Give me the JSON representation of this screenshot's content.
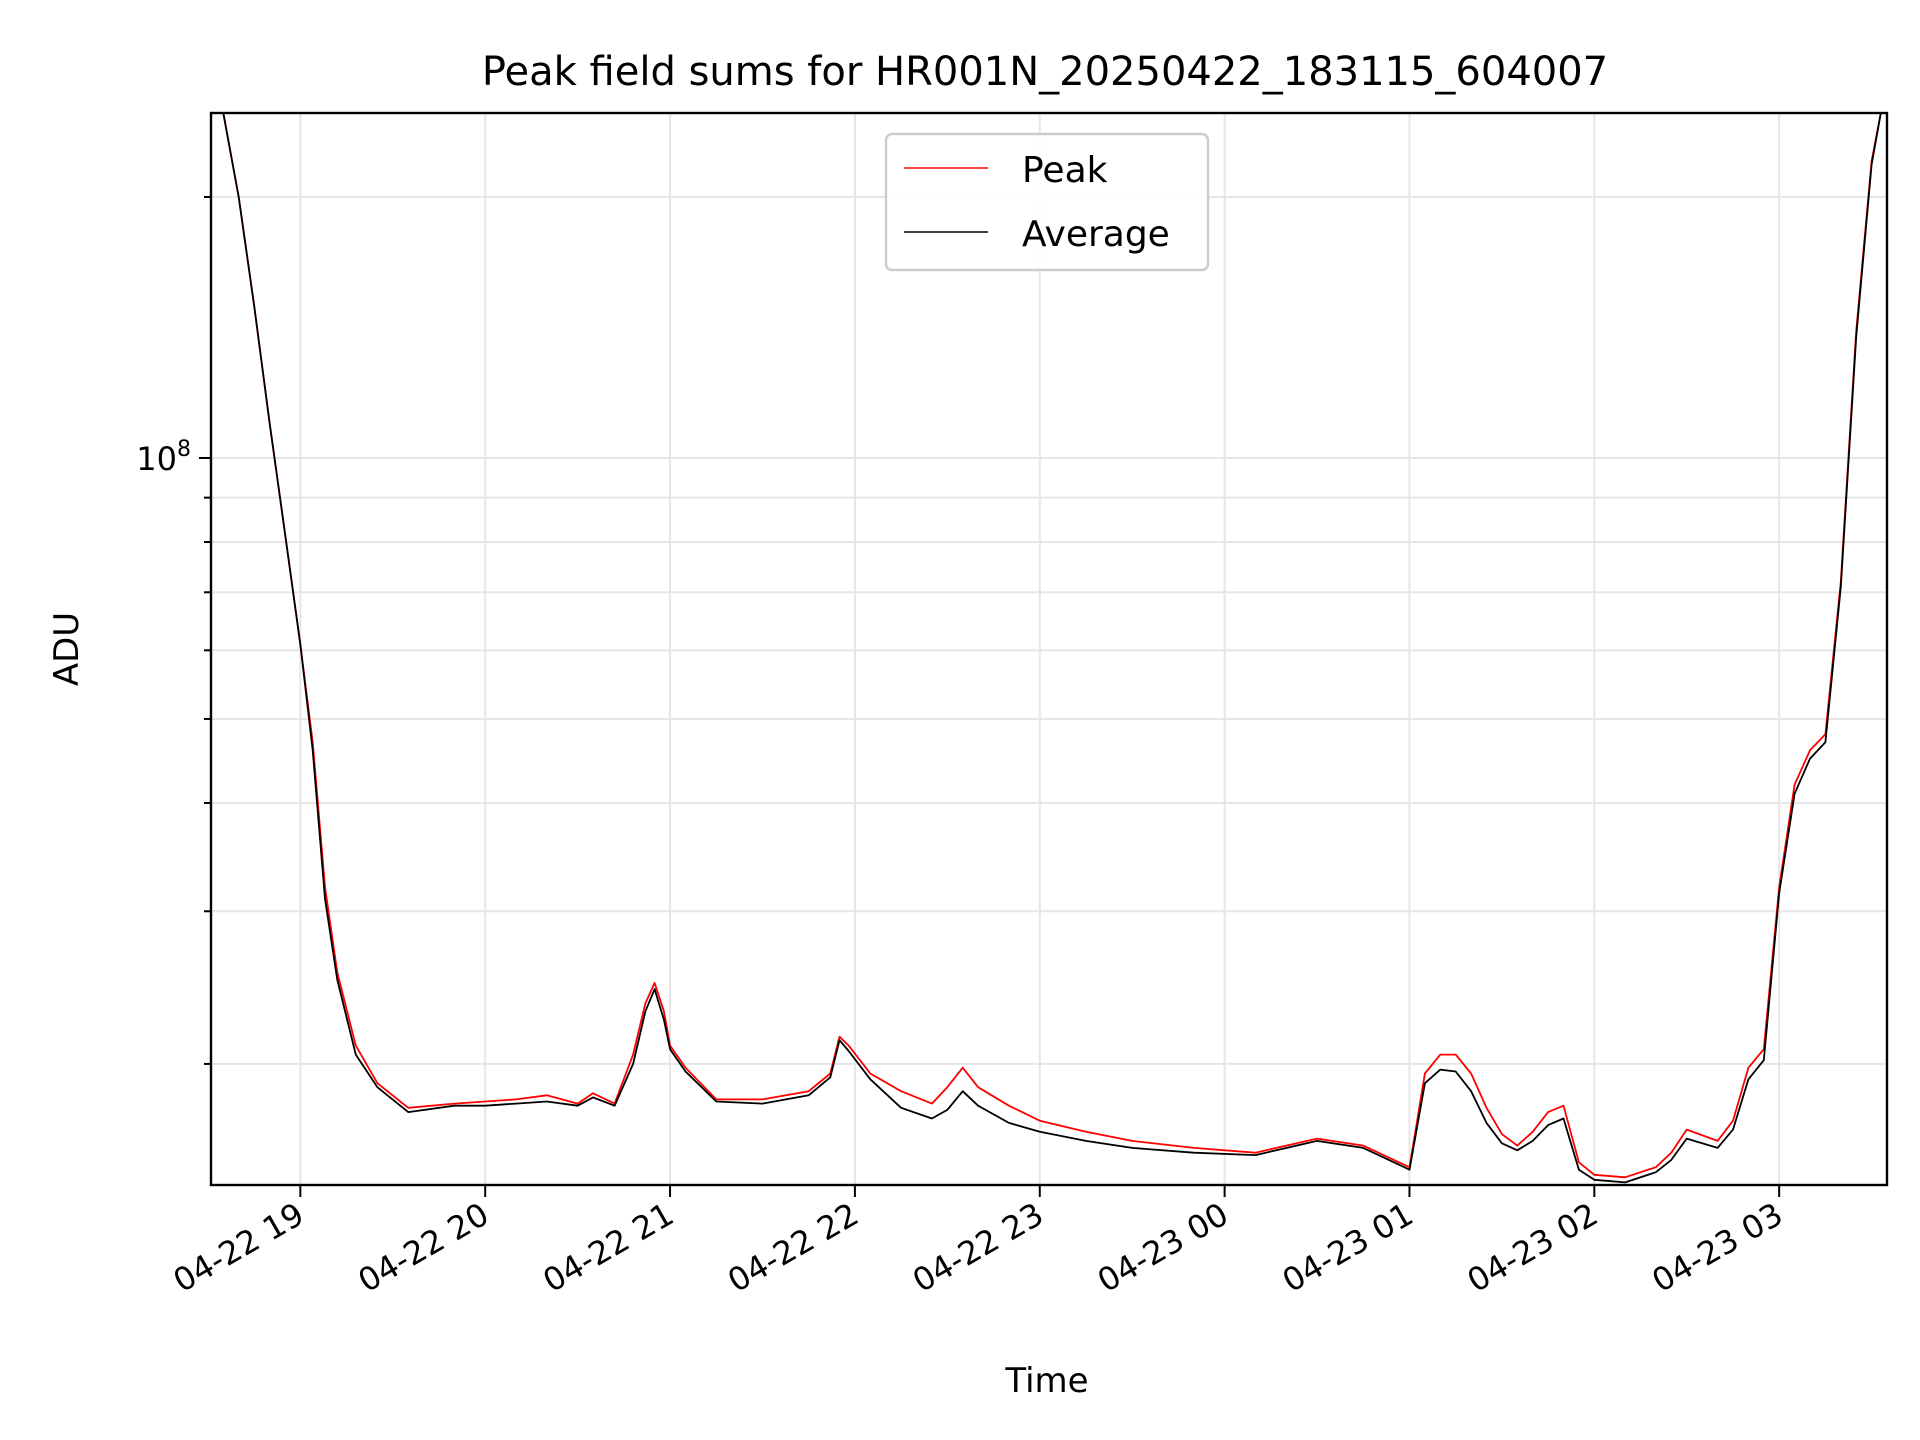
{
  "chart_data": {
    "type": "line",
    "title": "Peak field sums for HR001N_20250422_183115_604007",
    "xlabel": "Time",
    "ylabel": "ADU",
    "y_scale": "log",
    "ylim": [
      14500000,
      250000000
    ],
    "xlim": [
      "2025-04-22 18:31",
      "2025-04-23 03:35"
    ],
    "x_ticks": [
      "04-22 19",
      "04-22 20",
      "04-22 21",
      "04-22 22",
      "04-22 23",
      "04-23 00",
      "04-23 01",
      "04-23 02",
      "04-23 03"
    ],
    "y_major_tick_label": {
      "base": "10",
      "exponent": "8"
    },
    "grid": true,
    "legend_placement": "upper center",
    "colors": {
      "peak": "#ff0000",
      "average": "#000000"
    },
    "series": [
      {
        "name": "Peak",
        "x": [
          "2025-04-22 18:35",
          "2025-04-22 18:40",
          "2025-04-22 18:45",
          "2025-04-22 18:50",
          "2025-04-22 18:55",
          "2025-04-22 19:00",
          "2025-04-22 19:04",
          "2025-04-22 19:08",
          "2025-04-22 19:12",
          "2025-04-22 19:18",
          "2025-04-22 19:25",
          "2025-04-22 19:35",
          "2025-04-22 19:50",
          "2025-04-22 20:00",
          "2025-04-22 20:10",
          "2025-04-22 20:20",
          "2025-04-22 20:30",
          "2025-04-22 20:35",
          "2025-04-22 20:42",
          "2025-04-22 20:48",
          "2025-04-22 20:52",
          "2025-04-22 20:55",
          "2025-04-22 20:58",
          "2025-04-22 21:00",
          "2025-04-22 21:05",
          "2025-04-22 21:15",
          "2025-04-22 21:30",
          "2025-04-22 21:45",
          "2025-04-22 21:52",
          "2025-04-22 21:55",
          "2025-04-22 21:58",
          "2025-04-22 22:05",
          "2025-04-22 22:15",
          "2025-04-22 22:25",
          "2025-04-22 22:30",
          "2025-04-22 22:35",
          "2025-04-22 22:40",
          "2025-04-22 22:50",
          "2025-04-22 23:00",
          "2025-04-22 23:15",
          "2025-04-22 23:30",
          "2025-04-22 23:50",
          "2025-04-23 00:10",
          "2025-04-23 00:30",
          "2025-04-23 00:45",
          "2025-04-23 01:00",
          "2025-04-23 01:05",
          "2025-04-23 01:10",
          "2025-04-23 01:15",
          "2025-04-23 01:20",
          "2025-04-23 01:25",
          "2025-04-23 01:30",
          "2025-04-23 01:35",
          "2025-04-23 01:40",
          "2025-04-23 01:45",
          "2025-04-23 01:50",
          "2025-04-23 01:55",
          "2025-04-23 02:00",
          "2025-04-23 02:10",
          "2025-04-23 02:20",
          "2025-04-23 02:25",
          "2025-04-23 02:30",
          "2025-04-23 02:40",
          "2025-04-23 02:45",
          "2025-04-23 02:50",
          "2025-04-23 02:55",
          "2025-04-23 03:00",
          "2025-04-23 03:05",
          "2025-04-23 03:10",
          "2025-04-23 03:15",
          "2025-04-23 03:20",
          "2025-04-23 03:25",
          "2025-04-23 03:30",
          "2025-04-23 03:33"
        ],
        "values": [
          250000000,
          200000000,
          150000000,
          110000000,
          82000000,
          61000000,
          47000000,
          32000000,
          25500000,
          21000000,
          19000000,
          17800000,
          18000000,
          18100000,
          18200000,
          18400000,
          18000000,
          18500000,
          18000000,
          20500000,
          23500000,
          24800000,
          23000000,
          21000000,
          19800000,
          18200000,
          18200000,
          18600000,
          19500000,
          21500000,
          21000000,
          19500000,
          18600000,
          18000000,
          18800000,
          19800000,
          18800000,
          17900000,
          17200000,
          16700000,
          16300000,
          16000000,
          15800000,
          16400000,
          16100000,
          15200000,
          19500000,
          20500000,
          20500000,
          19500000,
          17800000,
          16600000,
          16100000,
          16700000,
          17600000,
          17900000,
          15400000,
          14900000,
          14800000,
          15200000,
          15800000,
          16800000,
          16300000,
          17200000,
          19800000,
          20800000,
          32000000,
          42000000,
          46000000,
          48000000,
          72000000,
          140000000,
          220000000,
          250000000
        ]
      },
      {
        "name": "Average",
        "x": [
          "2025-04-22 18:35",
          "2025-04-22 18:40",
          "2025-04-22 18:45",
          "2025-04-22 18:50",
          "2025-04-22 18:55",
          "2025-04-22 19:00",
          "2025-04-22 19:04",
          "2025-04-22 19:08",
          "2025-04-22 19:12",
          "2025-04-22 19:18",
          "2025-04-22 19:25",
          "2025-04-22 19:35",
          "2025-04-22 19:50",
          "2025-04-22 20:00",
          "2025-04-22 20:10",
          "2025-04-22 20:20",
          "2025-04-22 20:30",
          "2025-04-22 20:35",
          "2025-04-22 20:42",
          "2025-04-22 20:48",
          "2025-04-22 20:52",
          "2025-04-22 20:55",
          "2025-04-22 20:58",
          "2025-04-22 21:00",
          "2025-04-22 21:05",
          "2025-04-22 21:15",
          "2025-04-22 21:30",
          "2025-04-22 21:45",
          "2025-04-22 21:52",
          "2025-04-22 21:55",
          "2025-04-22 21:58",
          "2025-04-22 22:05",
          "2025-04-22 22:15",
          "2025-04-22 22:25",
          "2025-04-22 22:30",
          "2025-04-22 22:35",
          "2025-04-22 22:40",
          "2025-04-22 22:50",
          "2025-04-22 23:00",
          "2025-04-22 23:15",
          "2025-04-22 23:30",
          "2025-04-22 23:50",
          "2025-04-23 00:10",
          "2025-04-23 00:30",
          "2025-04-23 00:45",
          "2025-04-23 01:00",
          "2025-04-23 01:05",
          "2025-04-23 01:10",
          "2025-04-23 01:15",
          "2025-04-23 01:20",
          "2025-04-23 01:25",
          "2025-04-23 01:30",
          "2025-04-23 01:35",
          "2025-04-23 01:40",
          "2025-04-23 01:45",
          "2025-04-23 01:50",
          "2025-04-23 01:55",
          "2025-04-23 02:00",
          "2025-04-23 02:10",
          "2025-04-23 02:20",
          "2025-04-23 02:25",
          "2025-04-23 02:30",
          "2025-04-23 02:40",
          "2025-04-23 02:45",
          "2025-04-23 02:50",
          "2025-04-23 02:55",
          "2025-04-23 03:00",
          "2025-04-23 03:05",
          "2025-04-23 03:10",
          "2025-04-23 03:15",
          "2025-04-23 03:20",
          "2025-04-23 03:25",
          "2025-04-23 03:30",
          "2025-04-23 03:33"
        ],
        "values": [
          250000000,
          200000000,
          150000000,
          110000000,
          82000000,
          61000000,
          46000000,
          31000000,
          25000000,
          20500000,
          18800000,
          17600000,
          17900000,
          17900000,
          18000000,
          18100000,
          17900000,
          18300000,
          17900000,
          20000000,
          23000000,
          24400000,
          22500000,
          20800000,
          19600000,
          18100000,
          18000000,
          18400000,
          19300000,
          21300000,
          20700000,
          19200000,
          17800000,
          17300000,
          17700000,
          18600000,
          17900000,
          17100000,
          16700000,
          16300000,
          16000000,
          15800000,
          15700000,
          16300000,
          16000000,
          15100000,
          19000000,
          19700000,
          19600000,
          18600000,
          17100000,
          16200000,
          15900000,
          16300000,
          17000000,
          17300000,
          15100000,
          14700000,
          14600000,
          15000000,
          15500000,
          16400000,
          16000000,
          16800000,
          19200000,
          20200000,
          31500000,
          41000000,
          45000000,
          47000000,
          71000000,
          138000000,
          218000000,
          250000000
        ]
      }
    ]
  }
}
